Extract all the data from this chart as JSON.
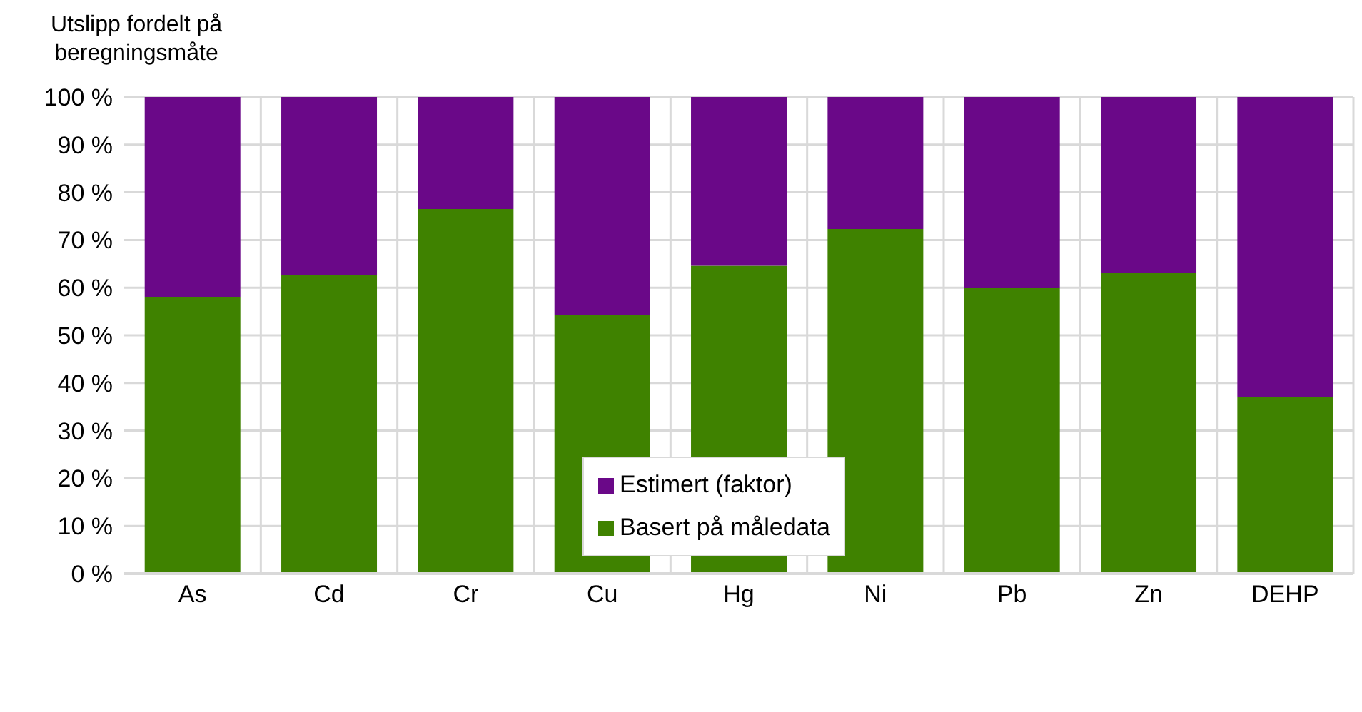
{
  "chart_data": {
    "type": "bar",
    "stacked": true,
    "ylabel": "Utslipp fordelt på beregningsmåte",
    "categories": [
      "As",
      "Cd",
      "Cr",
      "Cu",
      "Hg",
      "Ni",
      "Pb",
      "Zn",
      "DEHP"
    ],
    "series": [
      {
        "name": "Basert på måledata",
        "color": "#3f8200",
        "values": [
          58,
          62.6,
          76.5,
          54.2,
          64.6,
          72.3,
          60,
          63.1,
          37
        ]
      },
      {
        "name": "Estimert (faktor)",
        "color": "#6a0888",
        "values": [
          42,
          37.4,
          23.5,
          45.8,
          35.4,
          27.7,
          40,
          36.9,
          63
        ]
      }
    ],
    "ylim": [
      0,
      100
    ],
    "yticks": [
      {
        "value": 0,
        "label": "0 %"
      },
      {
        "value": 10,
        "label": "10 %"
      },
      {
        "value": 20,
        "label": "20 %"
      },
      {
        "value": 30,
        "label": "30 %"
      },
      {
        "value": 40,
        "label": "40 %"
      },
      {
        "value": 50,
        "label": "50 %"
      },
      {
        "value": 60,
        "label": "60 %"
      },
      {
        "value": 70,
        "label": "70 %"
      },
      {
        "value": 80,
        "label": "80 %"
      },
      {
        "value": 90,
        "label": "90 %"
      },
      {
        "value": 100,
        "label": "100 %"
      }
    ],
    "grid": true,
    "legend": "center"
  }
}
